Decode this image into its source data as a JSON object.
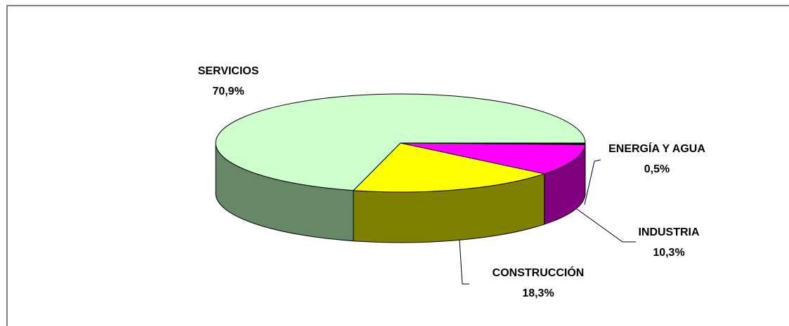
{
  "chart_data": {
    "type": "pie3d",
    "categories": [
      "ENERGÍA Y AGUA",
      "INDUSTRIA",
      "CONSTRUCCIÓN",
      "SERVICIOS"
    ],
    "values": [
      0.5,
      10.3,
      18.3,
      70.9
    ],
    "value_labels": [
      "0,5%",
      "10,3%",
      "18,3%",
      "70,9%"
    ],
    "colors": [
      "#000000",
      "#ff00ff",
      "#ffff00",
      "#ccffcc"
    ],
    "side_colors": [
      "#000000",
      "#800080",
      "#808000",
      "#668866"
    ]
  }
}
